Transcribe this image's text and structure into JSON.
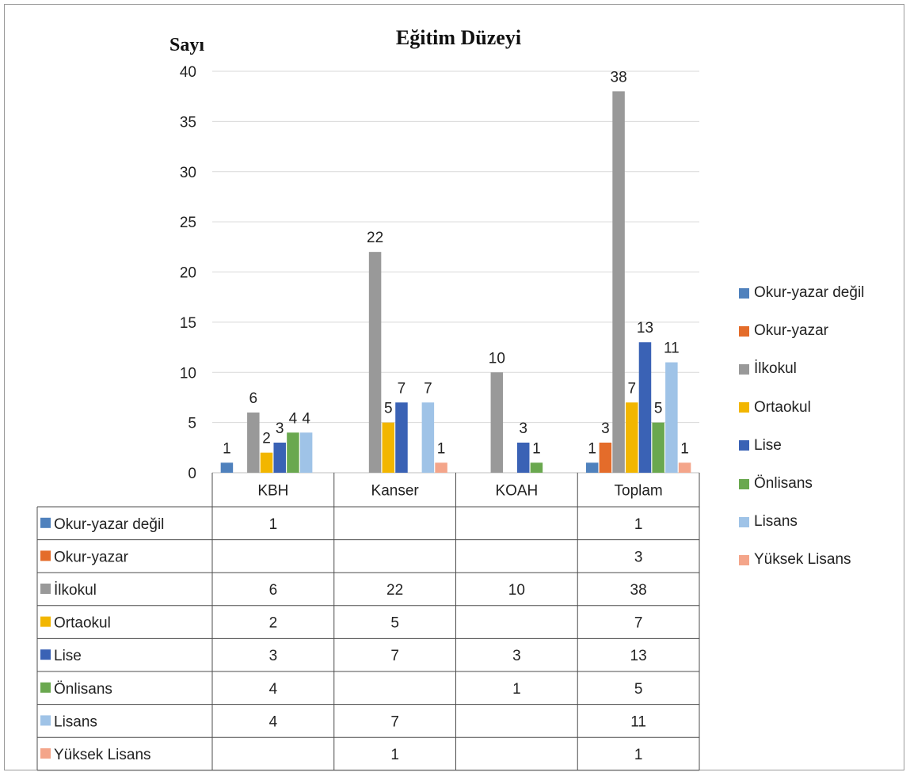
{
  "chart_data": {
    "type": "bar",
    "title": "Eğitim Düzeyi",
    "ylabel": "Sayı",
    "xlabel": "",
    "categories": [
      "KBH",
      "Kanser",
      "KOAH",
      "Toplam"
    ],
    "ylim": [
      0,
      40
    ],
    "yticks": [
      0,
      5,
      10,
      15,
      20,
      25,
      30,
      35,
      40
    ],
    "grid": true,
    "legend_position": "right",
    "data_table": true,
    "series": [
      {
        "name": "Okur-yazar değil",
        "color": "#4f81bd",
        "values": [
          1,
          null,
          null,
          1
        ]
      },
      {
        "name": "Okur-yazar",
        "color": "#e46c2a",
        "values": [
          null,
          null,
          null,
          3
        ]
      },
      {
        "name": "İlkokul",
        "color": "#999999",
        "values": [
          6,
          22,
          10,
          38
        ]
      },
      {
        "name": "Ortaokul",
        "color": "#f2b600",
        "values": [
          2,
          5,
          null,
          7
        ]
      },
      {
        "name": "Lise",
        "color": "#3a62b5",
        "values": [
          3,
          7,
          3,
          13
        ]
      },
      {
        "name": "Önlisans",
        "color": "#6aa84f",
        "values": [
          4,
          null,
          1,
          5
        ]
      },
      {
        "name": "Lisans",
        "color": "#9fc3e7",
        "values": [
          4,
          7,
          null,
          11
        ]
      },
      {
        "name": "Yüksek Lisans",
        "color": "#f4a58a",
        "values": [
          null,
          1,
          null,
          1
        ]
      }
    ]
  }
}
